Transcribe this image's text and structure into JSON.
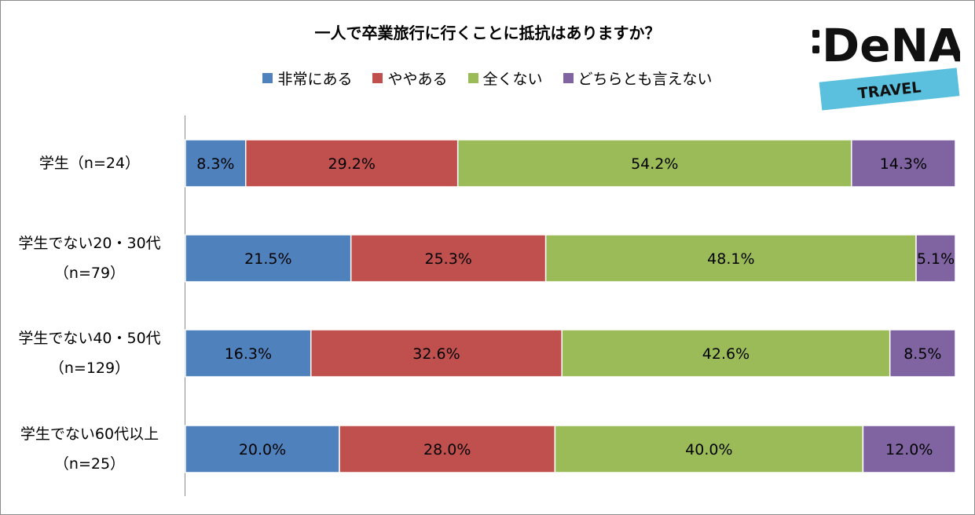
{
  "chart_data": {
    "type": "bar",
    "orientation": "horizontal",
    "stacked": true,
    "title": "一人で卒業旅行に行くことに抵抗はありますか？",
    "xlabel": "",
    "ylabel": "",
    "legend_position": "top",
    "grid": false,
    "categories": [
      {
        "line1": "学生（n=24）",
        "line2": ""
      },
      {
        "line1": "学生でない20・30代",
        "line2": "（n=79）"
      },
      {
        "line1": "学生でない40・50代",
        "line2": "（n=129）"
      },
      {
        "line1": "学生でない60代以上",
        "line2": "（n=25）"
      }
    ],
    "series": [
      {
        "name": "非常にある",
        "color": "#4f81bd",
        "values": [
          8.3,
          21.5,
          16.3,
          20.0
        ],
        "labels": [
          "8.3%",
          "21.5%",
          "16.3%",
          "20.0%"
        ]
      },
      {
        "name": "ややある",
        "color": "#c0504d",
        "values": [
          29.2,
          25.3,
          32.6,
          28.0
        ],
        "labels": [
          "29.2%",
          "25.3%",
          "32.6%",
          "28.0%"
        ]
      },
      {
        "name": "全くない",
        "color": "#9bbb59",
        "values": [
          54.2,
          48.1,
          42.6,
          40.0
        ],
        "labels": [
          "54.2%",
          "48.1%",
          "42.6%",
          "40.0%"
        ]
      },
      {
        "name": "どちらとも言えない",
        "color": "#8064a2",
        "values": [
          14.3,
          5.1,
          8.5,
          12.0
        ],
        "labels": [
          "14.3%",
          "5.1%",
          "8.5%",
          "12.0%"
        ]
      }
    ]
  },
  "logo": {
    "name": "DeNA",
    "sub": "TRAVEL",
    "band_color": "#5bc0de",
    "text_color": "#111111"
  }
}
